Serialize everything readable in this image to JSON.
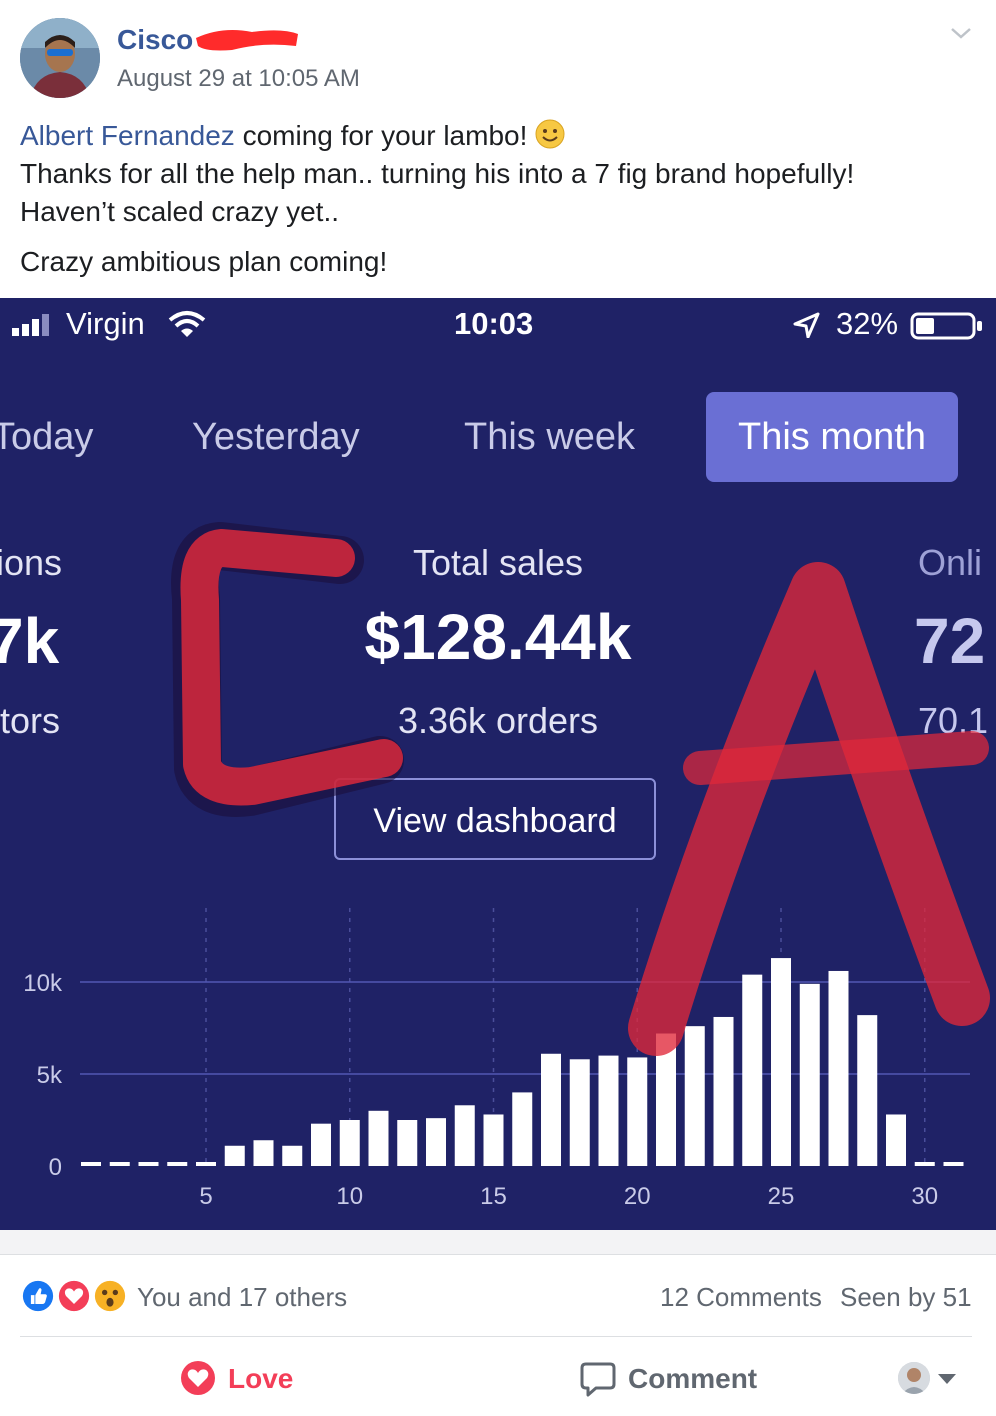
{
  "post": {
    "author": "Cisco",
    "timestamp": "August 29 at 10:05 AM",
    "tag_name": "Albert Fernandez",
    "line1_rest": " coming for your lambo!",
    "line2": "Thanks for all the help man.. turning his into a 7 fig brand hopefully!",
    "line3": "Haven’t scaled crazy yet..",
    "line4": "Crazy ambitious plan coming!"
  },
  "screenshot": {
    "status_bar": {
      "carrier": "Virgin",
      "time": "10:03",
      "battery": "32%"
    },
    "tabs": [
      {
        "label": "Today",
        "active": false
      },
      {
        "label": "Yesterday",
        "active": false
      },
      {
        "label": "This week",
        "active": false
      },
      {
        "label": "This month",
        "active": true
      }
    ],
    "left_metric": {
      "label": "ions",
      "value": "7k",
      "sub": "itors"
    },
    "center_metric": {
      "label": "Total sales",
      "value": "$128.44k",
      "sub": "3.36k orders"
    },
    "right_metric": {
      "label": "Onli",
      "value": "72",
      "sub": "70.1"
    },
    "dashboard_button": "View dashboard",
    "scribble_letters": "CA"
  },
  "chart_data": {
    "type": "bar",
    "x": [
      1,
      2,
      3,
      4,
      5,
      6,
      7,
      8,
      9,
      10,
      11,
      12,
      13,
      14,
      15,
      16,
      17,
      18,
      19,
      20,
      21,
      22,
      23,
      24,
      25,
      26,
      27,
      28,
      29,
      30,
      31
    ],
    "values": [
      50,
      50,
      50,
      50,
      50,
      1100,
      1400,
      1100,
      2300,
      2500,
      3000,
      2500,
      2600,
      3300,
      2800,
      4000,
      6100,
      5800,
      6000,
      5900,
      7200,
      7600,
      8100,
      10400,
      11300,
      9900,
      10600,
      8200,
      2800,
      50,
      50
    ],
    "x_ticks": [
      "5",
      "10",
      "15",
      "20",
      "25",
      "30"
    ],
    "x_tick_values": [
      5,
      10,
      15,
      20,
      25,
      30
    ],
    "y_ticks": [
      "0",
      "5k",
      "10k"
    ],
    "y_tick_values": [
      0,
      5000,
      10000
    ],
    "ylim": [
      0,
      12000
    ],
    "grid": true,
    "bar_color": "#ffffff",
    "background": "#1f2266"
  },
  "footer": {
    "reaction_text": "You and 17 others",
    "comments": "12 Comments",
    "seen": "Seen by 51",
    "love_label": "Love",
    "comment_label": "Comment"
  },
  "colors": {
    "link": "#385898",
    "love": "#f33e58",
    "like": "#1877f2",
    "wow": "#f7b125",
    "scribble": "#e0283a",
    "active_tab": "#6a6fd4"
  },
  "icons": [
    "avatar",
    "chevron-down-icon",
    "smiley-emoji-icon",
    "signal-icon",
    "wifi-icon",
    "location-arrow-icon",
    "battery-icon",
    "like-reaction-icon",
    "love-reaction-icon",
    "wow-reaction-icon",
    "heart-icon",
    "comment-bubble-icon"
  ]
}
